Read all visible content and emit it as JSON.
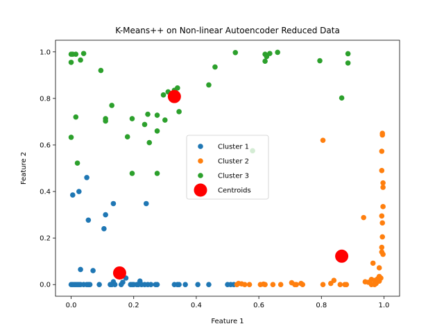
{
  "chart_data": {
    "type": "scatter",
    "title": "K-Means++ on Non-linear Autoencoder Reduced Data",
    "xlabel": "Feature 1",
    "ylabel": "Feature 2",
    "xlim": [
      -0.05,
      1.05
    ],
    "ylim": [
      -0.05,
      1.05
    ],
    "xticks": [
      0.0,
      0.2,
      0.4,
      0.6,
      0.8,
      1.0
    ],
    "yticks": [
      0.0,
      0.2,
      0.4,
      0.6,
      0.8,
      1.0
    ],
    "xtick_labels": [
      "0.0",
      "0.2",
      "0.4",
      "0.6",
      "0.8",
      "1.0"
    ],
    "ytick_labels": [
      "0.0",
      "0.2",
      "0.4",
      "0.6",
      "0.8",
      "1.0"
    ],
    "grid": false,
    "legend_position": "center",
    "series": [
      {
        "name": "Cluster 1",
        "color": "#1f77b4",
        "points": [
          [
            0.005,
            0.385
          ],
          [
            0.025,
            0.4
          ],
          [
            0.05,
            0.46
          ],
          [
            0.055,
            0.277
          ],
          [
            0.105,
            0.24
          ],
          [
            0.11,
            0.3
          ],
          [
            0.135,
            0.348
          ],
          [
            0.24,
            0.348
          ],
          [
            0.03,
            0.065
          ],
          [
            0.07,
            0.06
          ],
          [
            0.175,
            0.028
          ],
          [
            0.135,
            0.012
          ],
          [
            0.165,
            0.01
          ],
          [
            0.22,
            0.015
          ],
          [
            0.0,
            0.0
          ],
          [
            0.005,
            0.0
          ],
          [
            0.01,
            0.0
          ],
          [
            0.015,
            0.0
          ],
          [
            0.02,
            0.0
          ],
          [
            0.025,
            0.0
          ],
          [
            0.03,
            0.0
          ],
          [
            0.04,
            0.0
          ],
          [
            0.05,
            0.0
          ],
          [
            0.055,
            0.0
          ],
          [
            0.06,
            0.0
          ],
          [
            0.09,
            0.0
          ],
          [
            0.125,
            0.0
          ],
          [
            0.13,
            0.0
          ],
          [
            0.14,
            0.0
          ],
          [
            0.16,
            0.0
          ],
          [
            0.19,
            0.0
          ],
          [
            0.195,
            0.0
          ],
          [
            0.2,
            0.0
          ],
          [
            0.21,
            0.0
          ],
          [
            0.215,
            0.0
          ],
          [
            0.225,
            0.0
          ],
          [
            0.235,
            0.0
          ],
          [
            0.245,
            0.0
          ],
          [
            0.255,
            0.0
          ],
          [
            0.27,
            0.0
          ],
          [
            0.275,
            0.0
          ],
          [
            0.33,
            0.0
          ],
          [
            0.34,
            0.0
          ],
          [
            0.345,
            0.0
          ],
          [
            0.365,
            0.0
          ],
          [
            0.405,
            0.0
          ],
          [
            0.44,
            0.0
          ],
          [
            0.5,
            0.0
          ],
          [
            0.51,
            0.0
          ],
          [
            0.52,
            0.0
          ]
        ]
      },
      {
        "name": "Cluster 2",
        "color": "#ff7f0e",
        "points": [
          [
            0.805,
            0.62
          ],
          [
            0.935,
            0.288
          ],
          [
            0.995,
            0.65
          ],
          [
            0.995,
            0.643
          ],
          [
            0.993,
            0.573
          ],
          [
            0.993,
            0.49
          ],
          [
            0.997,
            0.437
          ],
          [
            0.997,
            0.418
          ],
          [
            0.997,
            0.335
          ],
          [
            0.993,
            0.295
          ],
          [
            0.995,
            0.265
          ],
          [
            0.995,
            0.205
          ],
          [
            0.993,
            0.16
          ],
          [
            0.993,
            0.14
          ],
          [
            0.997,
            0.13
          ],
          [
            0.965,
            0.092
          ],
          [
            0.985,
            0.072
          ],
          [
            0.94,
            0.012
          ],
          [
            0.96,
            0.022
          ],
          [
            0.97,
            0.018
          ],
          [
            0.98,
            0.025
          ],
          [
            0.985,
            0.035
          ],
          [
            0.99,
            0.028
          ],
          [
            0.985,
            0.015
          ],
          [
            0.97,
            0.0
          ],
          [
            0.96,
            0.0
          ],
          [
            0.975,
            0.005
          ],
          [
            0.95,
            0.01
          ],
          [
            0.84,
            0.018
          ],
          [
            0.83,
            0.005
          ],
          [
            0.86,
            0.0
          ],
          [
            0.875,
            0.0
          ],
          [
            0.88,
            0.0
          ],
          [
            0.805,
            0.0
          ],
          [
            0.74,
            0.0
          ],
          [
            0.735,
            0.005
          ],
          [
            0.72,
            0.0
          ],
          [
            0.715,
            0.0
          ],
          [
            0.705,
            0.008
          ],
          [
            0.67,
            0.0
          ],
          [
            0.645,
            0.0
          ],
          [
            0.62,
            0.0
          ],
          [
            0.615,
            0.002
          ],
          [
            0.605,
            0.0
          ],
          [
            0.57,
            0.0
          ],
          [
            0.555,
            0.0
          ],
          [
            0.545,
            0.003
          ],
          [
            0.535,
            0.005
          ],
          [
            0.53,
            0.0
          ]
        ]
      },
      {
        "name": "Cluster 3",
        "color": "#2ca02c",
        "points": [
          [
            0.0,
            0.99
          ],
          [
            0.005,
            0.99
          ],
          [
            0.015,
            0.99
          ],
          [
            0.04,
            0.993
          ],
          [
            0.0,
            0.955
          ],
          [
            0.03,
            0.965
          ],
          [
            0.095,
            0.92
          ],
          [
            0.525,
            0.997
          ],
          [
            0.62,
            0.99
          ],
          [
            0.625,
            0.98
          ],
          [
            0.635,
            0.993
          ],
          [
            0.66,
            0.998
          ],
          [
            0.62,
            0.96
          ],
          [
            0.795,
            0.962
          ],
          [
            0.885,
            0.992
          ],
          [
            0.885,
            0.952
          ],
          [
            0.865,
            0.802
          ],
          [
            0.46,
            0.935
          ],
          [
            0.44,
            0.858
          ],
          [
            0.34,
            0.845
          ],
          [
            0.33,
            0.835
          ],
          [
            0.31,
            0.828
          ],
          [
            0.295,
            0.815
          ],
          [
            0.345,
            0.743
          ],
          [
            0.245,
            0.732
          ],
          [
            0.275,
            0.728
          ],
          [
            0.3,
            0.707
          ],
          [
            0.235,
            0.688
          ],
          [
            0.195,
            0.713
          ],
          [
            0.13,
            0.77
          ],
          [
            0.11,
            0.713
          ],
          [
            0.11,
            0.703
          ],
          [
            0.275,
            0.66
          ],
          [
            0.18,
            0.635
          ],
          [
            0.25,
            0.61
          ],
          [
            0.015,
            0.72
          ],
          [
            0.0,
            0.633
          ],
          [
            0.02,
            0.522
          ],
          [
            0.195,
            0.478
          ],
          [
            0.275,
            0.478
          ],
          [
            0.58,
            0.575
          ]
        ]
      }
    ],
    "centroids": {
      "name": "Centroids",
      "color": "#ff0000",
      "points": [
        [
          0.155,
          0.05
        ],
        [
          0.33,
          0.808
        ],
        [
          0.865,
          0.122
        ]
      ]
    }
  }
}
